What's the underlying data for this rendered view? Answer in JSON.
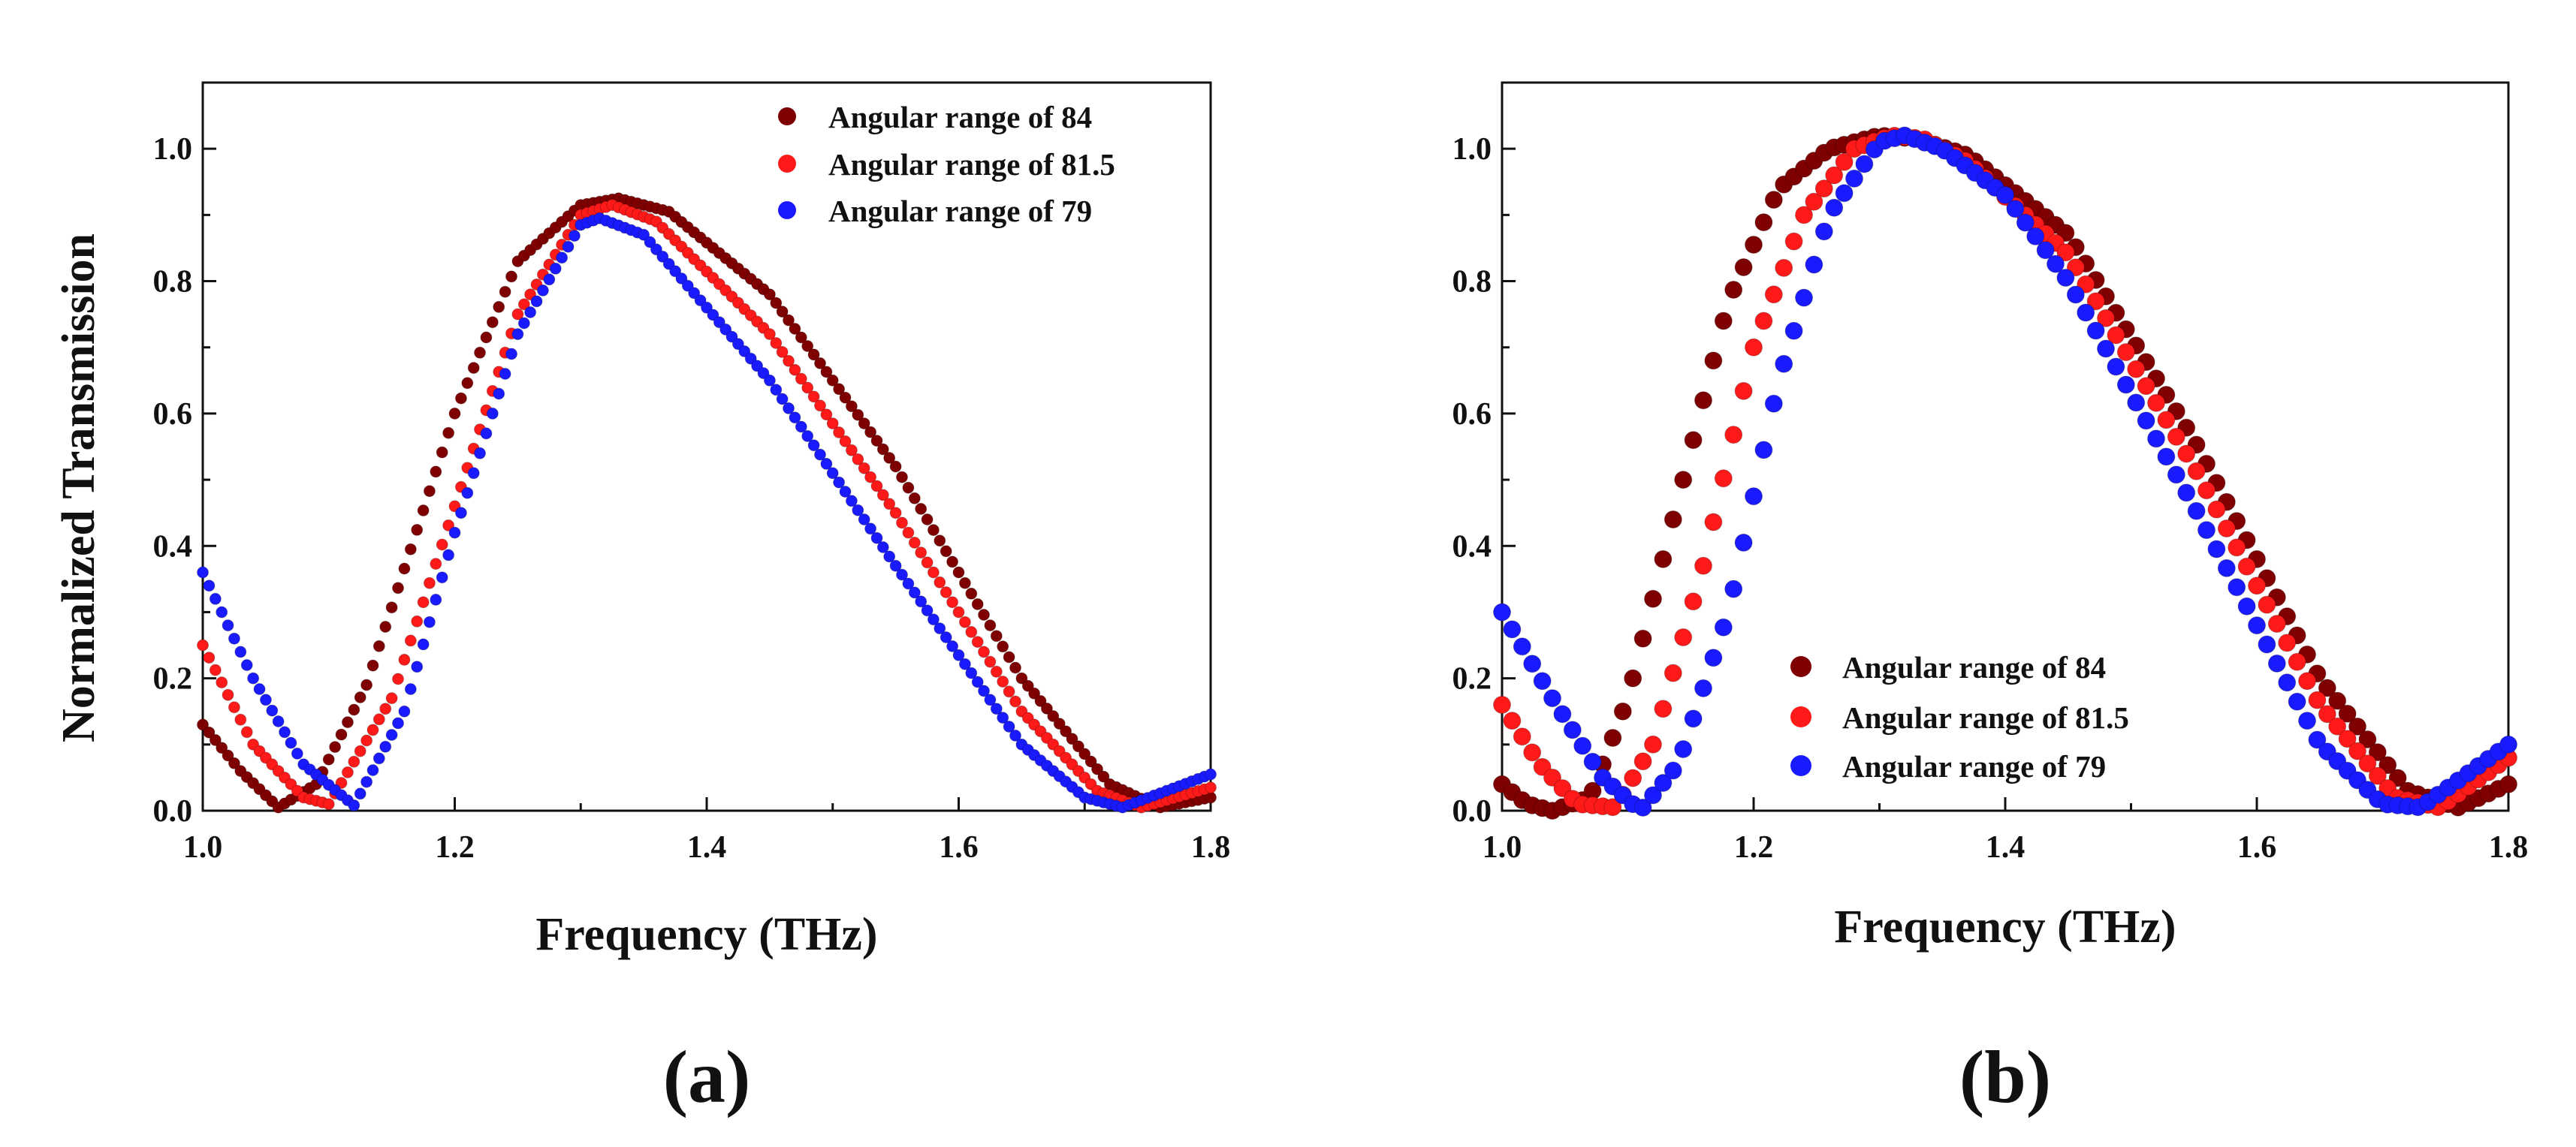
{
  "chart_data": [
    {
      "type": "scatter",
      "panel_label": "(a)",
      "xlabel": "Frequency (THz)",
      "ylabel": "Normalized Transmission",
      "xlim": [
        1.0,
        1.8
      ],
      "ylim": [
        0.0,
        1.1
      ],
      "xticks": [
        1.0,
        1.2,
        1.4,
        1.6,
        1.8
      ],
      "xtick_labels": [
        "1.0",
        "1.2",
        "1.4",
        "1.6",
        "1.8"
      ],
      "yticks": [
        0.0,
        0.2,
        0.4,
        0.6,
        0.8,
        1.0
      ],
      "ytick_labels": [
        "0.0",
        "0.2",
        "0.4",
        "0.6",
        "0.8",
        "1.0"
      ],
      "legend_position": "top-right",
      "marker_step": 0.005,
      "series": [
        {
          "name": "Angular range of 84",
          "color": "#7f0000",
          "x": [
            1.0,
            1.03,
            1.06,
            1.09,
            1.13,
            1.2,
            1.25,
            1.3,
            1.33,
            1.37,
            1.45,
            1.55,
            1.65,
            1.72,
            1.76,
            1.8
          ],
          "y": [
            0.13,
            0.06,
            0.005,
            0.04,
            0.19,
            0.6,
            0.83,
            0.915,
            0.925,
            0.905,
            0.78,
            0.52,
            0.2,
            0.04,
            0.005,
            0.02
          ]
        },
        {
          "name": "Angular range of 81.5",
          "color": "#ff1a1a",
          "x": [
            1.0,
            1.04,
            1.08,
            1.1,
            1.15,
            1.2,
            1.25,
            1.3,
            1.325,
            1.36,
            1.45,
            1.55,
            1.65,
            1.71,
            1.745,
            1.8
          ],
          "y": [
            0.25,
            0.1,
            0.02,
            0.01,
            0.17,
            0.46,
            0.75,
            0.9,
            0.915,
            0.89,
            0.72,
            0.45,
            0.15,
            0.03,
            0.005,
            0.035
          ]
        },
        {
          "name": "Angular range of 79",
          "color": "#1a1aff",
          "x": [
            1.0,
            1.04,
            1.08,
            1.12,
            1.16,
            1.2,
            1.25,
            1.3,
            1.315,
            1.35,
            1.45,
            1.55,
            1.65,
            1.7,
            1.73,
            1.8
          ],
          "y": [
            0.36,
            0.2,
            0.07,
            0.008,
            0.15,
            0.42,
            0.72,
            0.885,
            0.895,
            0.87,
            0.65,
            0.37,
            0.1,
            0.02,
            0.005,
            0.055
          ]
        }
      ]
    },
    {
      "type": "scatter",
      "panel_label": "(b)",
      "xlabel": "Frequency (THz)",
      "ylabel": "",
      "xlim": [
        1.0,
        1.8
      ],
      "ylim": [
        0.0,
        1.1
      ],
      "xticks": [
        1.0,
        1.2,
        1.4,
        1.6,
        1.8
      ],
      "xtick_labels": [
        "1.0",
        "1.2",
        "1.4",
        "1.6",
        "1.8"
      ],
      "yticks": [
        0.0,
        0.2,
        0.4,
        0.6,
        0.8,
        1.0
      ],
      "ytick_labels": [
        "0.0",
        "0.2",
        "0.4",
        "0.6",
        "0.8",
        "1.0"
      ],
      "legend_position": "bottom-center",
      "marker_step": 0.008,
      "series": [
        {
          "name": "Angular range of 84",
          "color": "#7f0000",
          "x": [
            1.0,
            1.02,
            1.04,
            1.07,
            1.1,
            1.14,
            1.18,
            1.22,
            1.26,
            1.3,
            1.33,
            1.37,
            1.45,
            1.55,
            1.65,
            1.72,
            1.76,
            1.8
          ],
          "y": [
            0.04,
            0.01,
            0.0,
            0.02,
            0.17,
            0.47,
            0.77,
            0.94,
            1.0,
            1.02,
            1.015,
            0.99,
            0.87,
            0.56,
            0.2,
            0.03,
            0.005,
            0.04
          ]
        },
        {
          "name": "Angular range of 81.5",
          "color": "#ff1a1a",
          "x": [
            1.0,
            1.03,
            1.06,
            1.09,
            1.12,
            1.16,
            1.2,
            1.24,
            1.28,
            1.31,
            1.335,
            1.37,
            1.45,
            1.55,
            1.65,
            1.71,
            1.745,
            1.8
          ],
          "y": [
            0.16,
            0.07,
            0.01,
            0.005,
            0.1,
            0.37,
            0.7,
            0.9,
            1.0,
            1.02,
            1.015,
            0.98,
            0.84,
            0.52,
            0.16,
            0.02,
            0.005,
            0.08
          ]
        },
        {
          "name": "Angular range of 79",
          "color": "#1a1aff",
          "x": [
            1.0,
            1.04,
            1.08,
            1.11,
            1.14,
            1.18,
            1.22,
            1.26,
            1.3,
            1.32,
            1.35,
            1.4,
            1.45,
            1.55,
            1.65,
            1.7,
            1.73,
            1.8
          ],
          "y": [
            0.3,
            0.17,
            0.05,
            0.0,
            0.07,
            0.3,
            0.65,
            0.9,
            1.01,
            1.02,
            1.0,
            0.93,
            0.8,
            0.46,
            0.1,
            0.01,
            0.005,
            0.1
          ]
        }
      ]
    }
  ]
}
